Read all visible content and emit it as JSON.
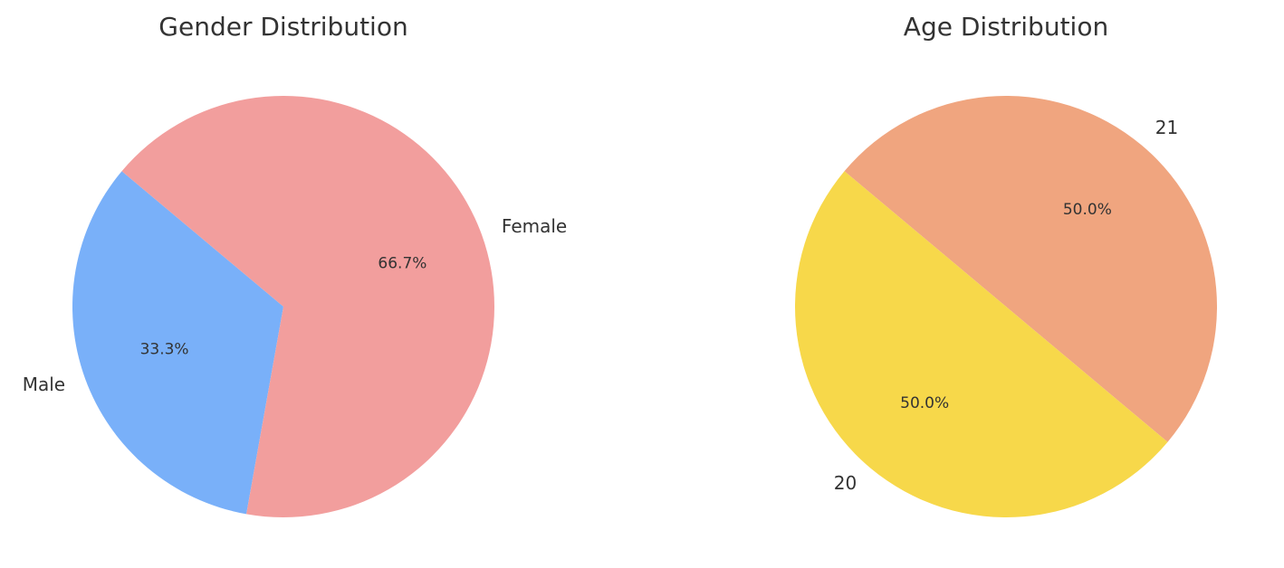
{
  "chart_data": [
    {
      "type": "pie",
      "title": "Gender Distribution",
      "labels": [
        "Male",
        "Female"
      ],
      "values": [
        33.3,
        66.7
      ],
      "percent_labels": [
        "33.3%",
        "66.7%"
      ],
      "colors": [
        "#79b0f9",
        "#f29e9d"
      ],
      "start_angle_deg": 140,
      "direction": "counterclockwise"
    },
    {
      "type": "pie",
      "title": "Age Distribution",
      "labels": [
        "21",
        "20"
      ],
      "values": [
        50.0,
        50.0
      ],
      "percent_labels": [
        "50.0%",
        "50.0%"
      ],
      "colors": [
        "#f0a57f",
        "#f7d84a"
      ],
      "start_angle_deg": -40,
      "direction": "counterclockwise"
    }
  ]
}
